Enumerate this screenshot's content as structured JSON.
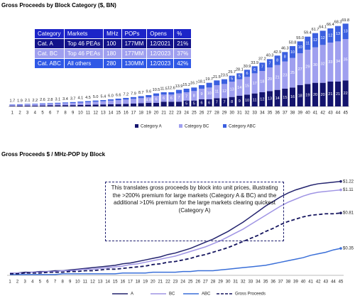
{
  "chart_data": [
    {
      "type": "bar",
      "stacked": true,
      "title": "Gross Proceeds by Block Category ($, BN)",
      "categories": [
        "1",
        "2",
        "3",
        "4",
        "5",
        "6",
        "7",
        "8",
        "9",
        "10",
        "11",
        "12",
        "13",
        "14",
        "15",
        "16",
        "17",
        "18",
        "19",
        "20",
        "21",
        "22",
        "23",
        "24",
        "25",
        "26",
        "27",
        "28",
        "29",
        "30",
        "31",
        "32",
        "33",
        "34",
        "35",
        "36",
        "37",
        "38",
        "39",
        "40",
        "41",
        "42",
        "43",
        "44",
        "45"
      ],
      "series": [
        {
          "name": "Category A",
          "color": "#14146e",
          "values": [
            0.5,
            0.6,
            0.7,
            0.7,
            0.8,
            0.9,
            1.0,
            1.1,
            1.1,
            1.3,
            1.4,
            1.6,
            1.7,
            1.9,
            2.0,
            2.2,
            2.4,
            2.7,
            3.0,
            3,
            4,
            4,
            4,
            5,
            5,
            6,
            6,
            7,
            7,
            8,
            9,
            10,
            11,
            12,
            13,
            14,
            15,
            16,
            18,
            19,
            20,
            20,
            21,
            21,
            22
          ]
        },
        {
          "name": "Category BC",
          "color": "#9f9fef",
          "values": [
            0.9,
            0.9,
            1.0,
            1.1,
            1.3,
            1.4,
            1.5,
            1.7,
            1.9,
            2.0,
            2.2,
            2.4,
            2.7,
            3.0,
            3.3,
            3.6,
            4.0,
            4.3,
            4.8,
            6,
            6,
            6,
            7,
            7,
            8,
            9,
            10,
            11,
            12,
            13,
            14,
            15,
            17,
            18,
            20,
            21,
            23,
            25,
            27,
            29,
            30,
            32,
            33,
            34,
            35
          ]
        },
        {
          "name": "Category ABC",
          "color": "#3b5fe0",
          "values": [
            0.3,
            0.4,
            0.4,
            0.4,
            0.5,
            0.5,
            0.6,
            0.6,
            0.7,
            0.8,
            0.9,
            1.0,
            1.0,
            1.1,
            1.3,
            1.4,
            1.5,
            1.7,
            1.8,
            2,
            2,
            2,
            3,
            3,
            3,
            3,
            4,
            4,
            4,
            5,
            5,
            6,
            6,
            7,
            7,
            8,
            8,
            10,
            10,
            11,
            12,
            12,
            12,
            13,
            13
          ]
        }
      ],
      "totals": {
        "values": [
          1.7,
          1.9,
          2.1,
          2.2,
          2.6,
          2.8,
          3.1,
          3.4,
          3.7,
          4.1,
          4.5,
          5.0,
          5.4,
          6.0,
          6.6,
          7.2,
          7.9,
          8.7,
          9.6,
          10.5,
          11.5,
          12.6,
          13.9,
          15.2,
          16.7,
          18.1,
          19.7,
          21.5,
          23.5,
          25.7,
          28.1,
          30.9,
          33.9,
          37.2,
          40.3,
          42.9,
          46.3,
          50.8,
          55.0,
          59.4,
          61.7,
          64.1,
          66.4,
          68.3,
          69.8
        ],
        "value_labels": [
          "1.7",
          "1.9",
          "2.1",
          "2.2",
          "2.6",
          "2.8",
          "3.1",
          "3.4",
          "3.7",
          "4.1",
          "4.5",
          "5.0",
          "5.4",
          "6.0",
          "6.6",
          "7.2",
          "7.9",
          "8.7",
          "9.6",
          "10.5",
          "11.5",
          "12.6",
          "13.9",
          "15.2",
          "16.7",
          "18.1",
          "19.7",
          "21.5",
          "23.5",
          "25.7",
          "28.1",
          "30.9",
          "33.9",
          "37.2",
          "40.3",
          "42.9",
          "46.3",
          "50.8",
          "55.0",
          "59.4",
          "61.7",
          "64.1",
          "66.4",
          "68.3",
          "69.8"
        ]
      },
      "ylim": [
        0,
        75
      ],
      "table": {
        "header": [
          "Category",
          "Markets",
          "MHz",
          "POPs",
          "Opens",
          "%"
        ],
        "rows": [
          [
            "Cat. A",
            "Top 46 PEAs",
            "100",
            "177MM",
            "12/2021",
            "21%"
          ],
          [
            "Cat. BC",
            "Top 46 PEAs",
            "180",
            "177MM",
            "12/2023",
            "37%"
          ],
          [
            "Cat. ABC",
            "All others",
            "280",
            "130MM",
            "12/2023",
            "42%"
          ]
        ]
      }
    },
    {
      "type": "line",
      "title": "Gross Proceeds $ / MHz-POP by Block",
      "annotation": "This translates gross proceeds by block into unit prices, illustrating the >200% premium for large markets (Category A & BC) and the additional >10% premium for the large markets clearing quickest (Category A)",
      "categories": [
        "1",
        "2",
        "3",
        "4",
        "5",
        "6",
        "7",
        "8",
        "9",
        "10",
        "11",
        "12",
        "13",
        "14",
        "15",
        "16",
        "17",
        "18",
        "19",
        "20",
        "21",
        "22",
        "23",
        "24",
        "25",
        "26",
        "27",
        "28",
        "29",
        "30",
        "31",
        "32",
        "33",
        "34",
        "35",
        "36",
        "37",
        "38",
        "39",
        "40",
        "41",
        "42",
        "43",
        "44",
        "45"
      ],
      "series": [
        {
          "name": "A",
          "color": "#23236e",
          "dashed": false,
          "end_label": "$1.22",
          "values": [
            0.03,
            0.03,
            0.04,
            0.04,
            0.05,
            0.05,
            0.06,
            0.06,
            0.07,
            0.08,
            0.09,
            0.1,
            0.11,
            0.12,
            0.13,
            0.15,
            0.16,
            0.18,
            0.2,
            0.22,
            0.24,
            0.27,
            0.29,
            0.32,
            0.35,
            0.39,
            0.43,
            0.47,
            0.52,
            0.57,
            0.63,
            0.69,
            0.76,
            0.83,
            0.9,
            0.96,
            1.02,
            1.07,
            1.11,
            1.14,
            1.17,
            1.19,
            1.2,
            1.21,
            1.22
          ]
        },
        {
          "name": "BC",
          "color": "#9f94e4",
          "dashed": false,
          "end_label": "$1.11",
          "values": [
            0.03,
            0.03,
            0.03,
            0.04,
            0.04,
            0.05,
            0.05,
            0.06,
            0.06,
            0.07,
            0.08,
            0.08,
            0.09,
            0.1,
            0.11,
            0.12,
            0.14,
            0.15,
            0.17,
            0.19,
            0.21,
            0.23,
            0.25,
            0.28,
            0.31,
            0.34,
            0.37,
            0.41,
            0.45,
            0.5,
            0.55,
            0.6,
            0.66,
            0.72,
            0.78,
            0.84,
            0.9,
            0.95,
            0.99,
            1.03,
            1.06,
            1.08,
            1.09,
            1.1,
            1.11
          ]
        },
        {
          "name": "ABC",
          "color": "#3a6fd8",
          "dashed": false,
          "end_label": "$0.35",
          "values": [
            0.01,
            0.01,
            0.01,
            0.01,
            0.01,
            0.01,
            0.01,
            0.02,
            0.02,
            0.02,
            0.02,
            0.02,
            0.02,
            0.02,
            0.02,
            0.03,
            0.03,
            0.03,
            0.03,
            0.04,
            0.04,
            0.04,
            0.04,
            0.05,
            0.05,
            0.06,
            0.06,
            0.06,
            0.07,
            0.08,
            0.09,
            0.1,
            0.11,
            0.12,
            0.13,
            0.15,
            0.17,
            0.19,
            0.21,
            0.23,
            0.26,
            0.28,
            0.3,
            0.33,
            0.35
          ]
        },
        {
          "name": "Gross Proceeds",
          "color": "#14145e",
          "dashed": true,
          "end_label": "$0.81",
          "values": [
            0.02,
            0.02,
            0.03,
            0.03,
            0.03,
            0.04,
            0.04,
            0.04,
            0.05,
            0.05,
            0.06,
            0.06,
            0.07,
            0.08,
            0.08,
            0.09,
            0.1,
            0.11,
            0.12,
            0.14,
            0.15,
            0.17,
            0.18,
            0.2,
            0.22,
            0.25,
            0.27,
            0.3,
            0.33,
            0.36,
            0.4,
            0.44,
            0.48,
            0.52,
            0.57,
            0.61,
            0.66,
            0.7,
            0.73,
            0.76,
            0.78,
            0.79,
            0.8,
            0.8,
            0.81
          ]
        }
      ],
      "ylim": [
        0,
        1.3
      ]
    }
  ]
}
